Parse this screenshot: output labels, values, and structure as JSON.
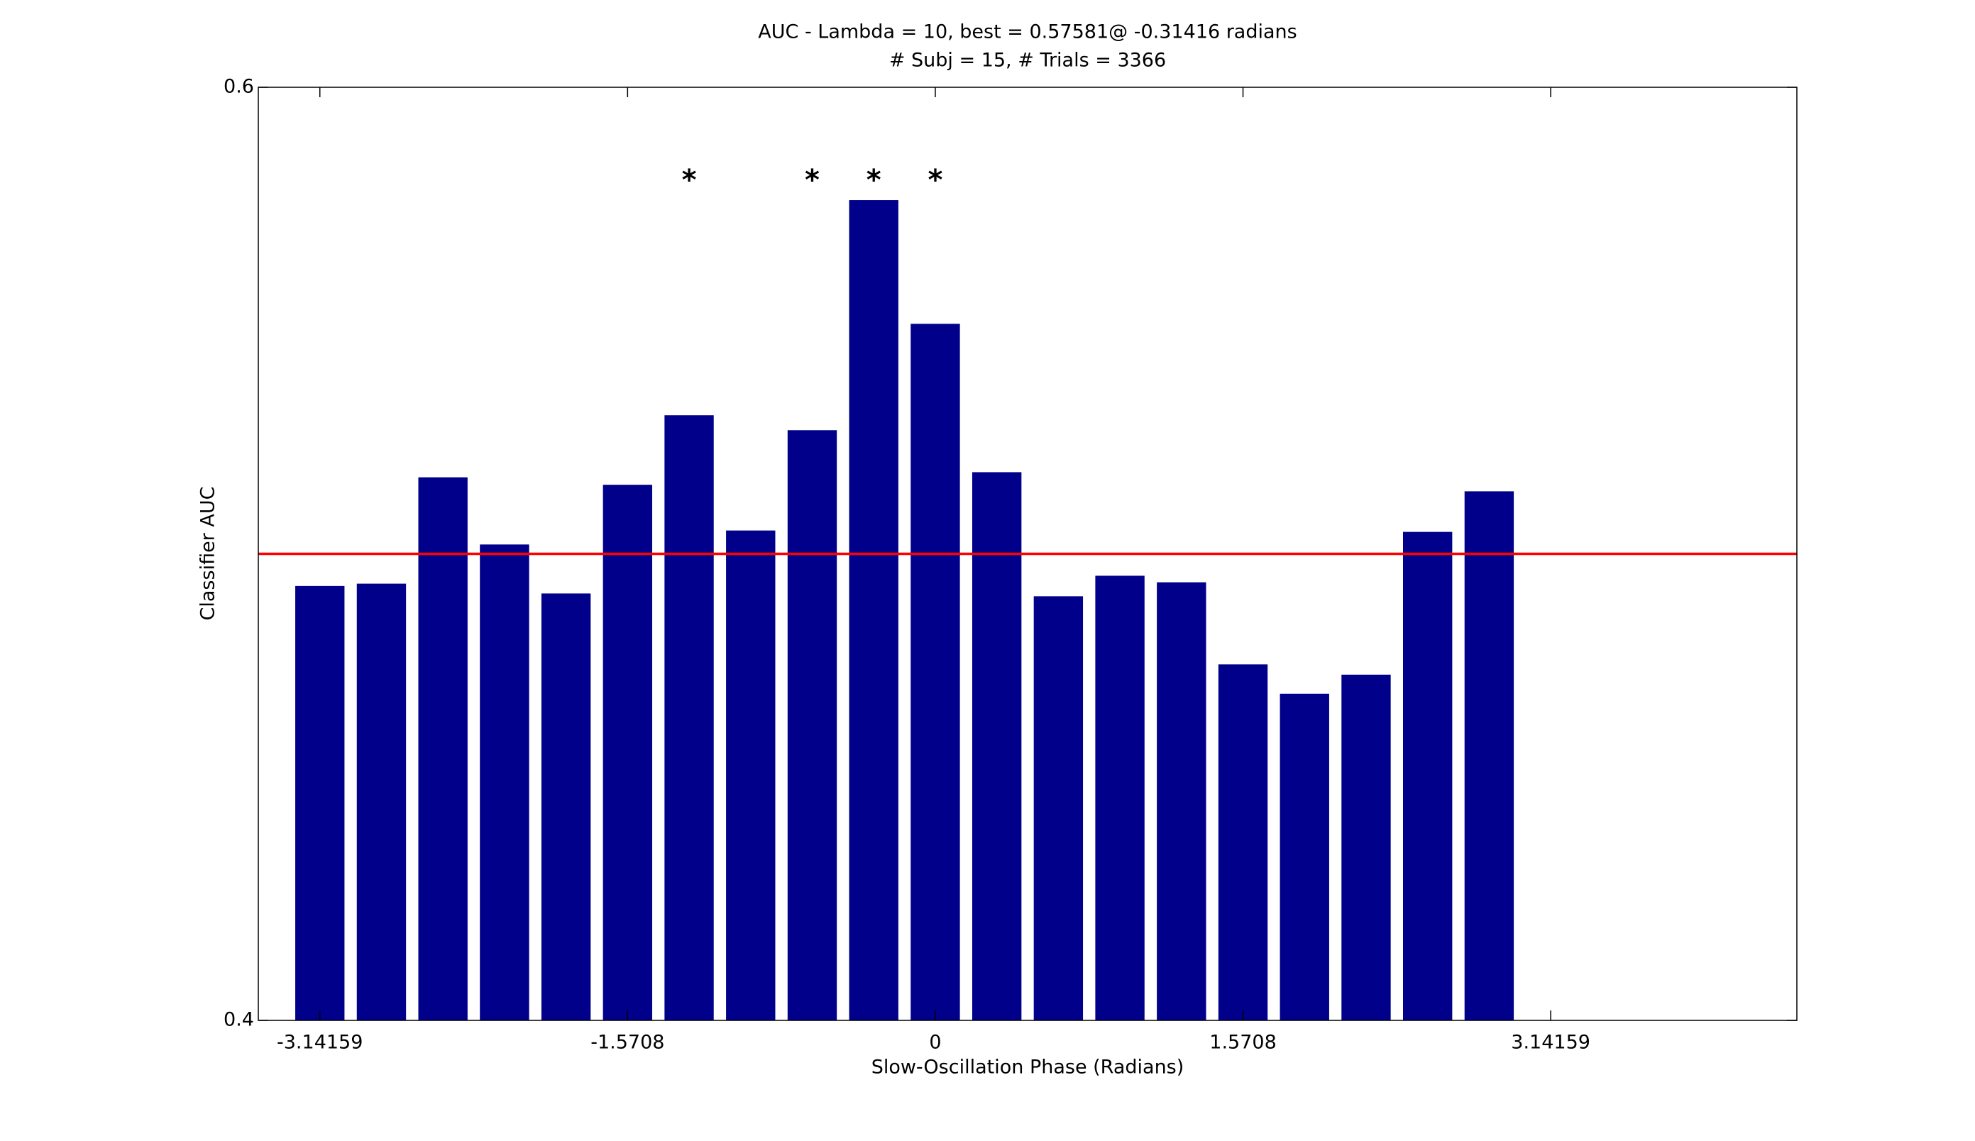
{
  "chart_data": {
    "type": "bar",
    "title": "AUC - Lambda = 10, best = 0.57581@ -0.31416 radians",
    "subtitle": "# Subj = 15, # Trials = 3366",
    "xlabel": "Slow-Oscillation Phase (Radians)",
    "ylabel": "Classifier AUC",
    "x": [
      -3.14159,
      -2.82743,
      -2.51327,
      -2.19911,
      -1.88496,
      -1.5708,
      -1.25664,
      -0.94248,
      -0.62832,
      -0.31416,
      0,
      0.31416,
      0.62832,
      0.94248,
      1.25664,
      1.5708,
      1.88496,
      2.19911,
      2.51327,
      2.82743
    ],
    "values": [
      0.4931,
      0.4936,
      0.5164,
      0.502,
      0.4915,
      0.5148,
      0.5297,
      0.505,
      0.5265,
      0.57581,
      0.5493,
      0.5175,
      0.4909,
      0.4953,
      0.4939,
      0.4763,
      0.47,
      0.4741,
      0.5047,
      0.5134
    ],
    "color": "#00008b",
    "bar_width": 0.2513,
    "xlim": [
      -3.4558,
      4.3982
    ],
    "xticks": [
      -3.14159,
      -1.5708,
      0,
      1.5708,
      3.14159
    ],
    "ylim": [
      0.4,
      0.6
    ],
    "yticks": [
      0.4,
      0.6
    ],
    "hline": {
      "value": 0.5,
      "color": "#ff0000"
    },
    "annotations": [
      {
        "x": -1.25664,
        "y": 0.5813,
        "text": "*"
      },
      {
        "x": -0.62832,
        "y": 0.5813,
        "text": "*"
      },
      {
        "x": -0.31416,
        "y": 0.5813,
        "text": "*"
      },
      {
        "x": 0,
        "y": 0.5813,
        "text": "*"
      }
    ],
    "grid": false
  }
}
